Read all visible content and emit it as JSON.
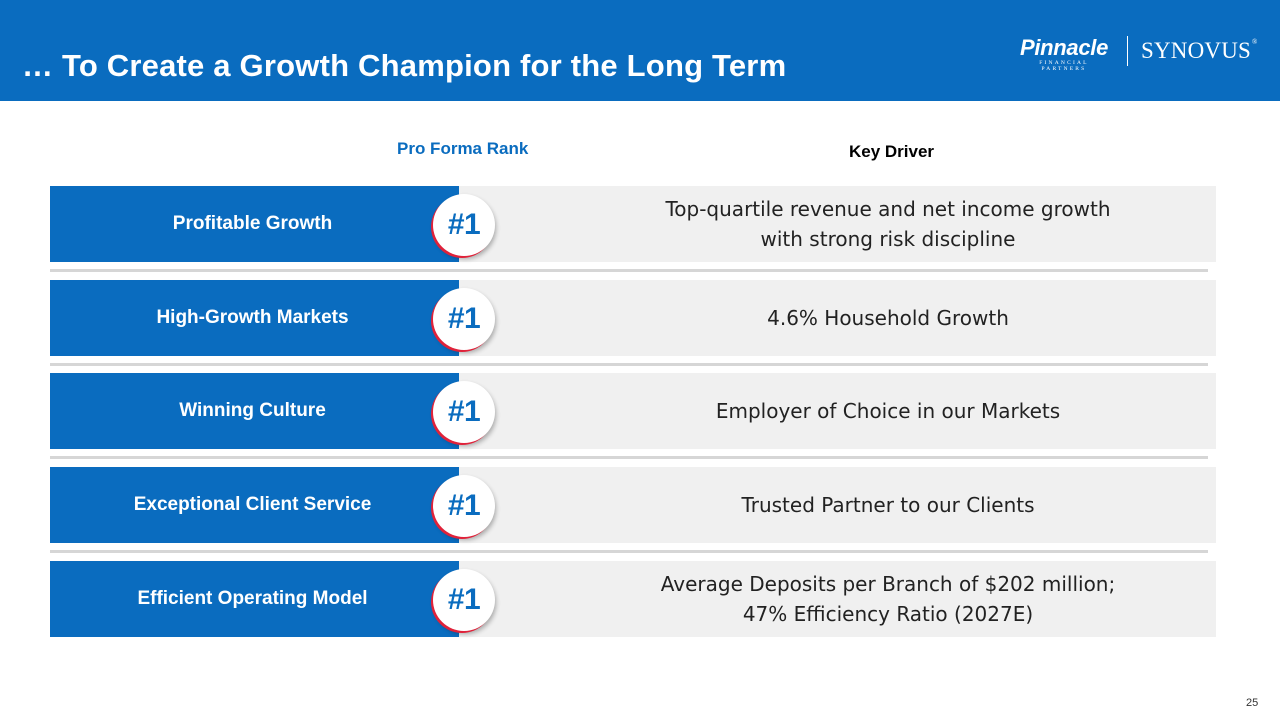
{
  "header": {
    "title": "… To Create a Growth Champion for the Long Term",
    "logos": {
      "pinnacle_word": "Pinnacle",
      "pinnacle_sub": "FINANCIAL PARTNERS",
      "synovus": "SYNOVUS",
      "synovus_mark": "®"
    }
  },
  "columns": {
    "rank_header": "Pro Forma Rank",
    "driver_header": "Key Driver"
  },
  "rows": [
    {
      "label": "Profitable Growth",
      "rank": "#1",
      "driver": "Top-quartile revenue and net income growth\nwith strong risk discipline"
    },
    {
      "label": "High-Growth Markets",
      "rank": "#1",
      "driver": "4.6% Household Growth"
    },
    {
      "label": "Winning Culture",
      "rank": "#1",
      "driver": "Employer of Choice in our Markets"
    },
    {
      "label": "Exceptional Client Service",
      "rank": "#1",
      "driver": "Trusted Partner to our Clients"
    },
    {
      "label": "Efficient Operating Model",
      "rank": "#1",
      "driver": "Average Deposits per Branch of $202 million;\n47% Efficiency Ratio (2027E)"
    }
  ],
  "page_number": "25",
  "colors": {
    "brand_blue": "#0a6cbf",
    "badge_accent": "#e0223a",
    "row_bar": "#f0f0f0"
  }
}
